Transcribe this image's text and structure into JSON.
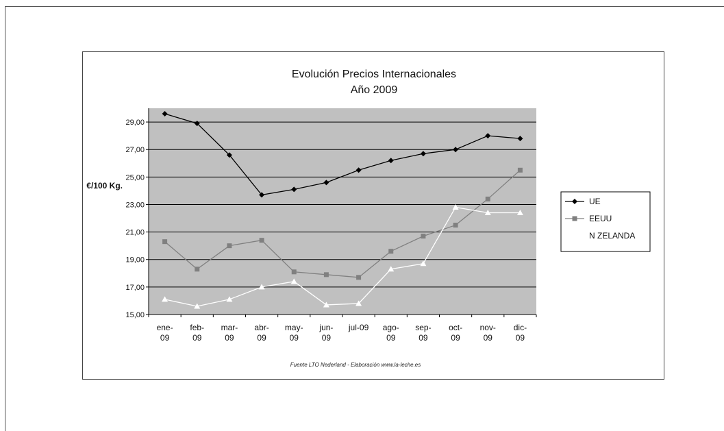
{
  "chart_data": {
    "type": "line",
    "title": "Evolución Precios Internacionales",
    "subtitle": "Año 2009",
    "ylabel": "€/100 Kg.",
    "xlabel": "",
    "source_note": "Fuente LTO Nederland - Elaboración www.la-leche.es",
    "categories": [
      [
        "ene-",
        "09"
      ],
      [
        "feb-",
        "09"
      ],
      [
        "mar-",
        "09"
      ],
      [
        "abr-",
        "09"
      ],
      [
        "may-",
        "09"
      ],
      [
        "jun-",
        "09"
      ],
      [
        "jul-09"
      ],
      [
        "ago-",
        "09"
      ],
      [
        "sep-",
        "09"
      ],
      [
        "oct-",
        "09"
      ],
      [
        "nov-",
        "09"
      ],
      [
        "dic-",
        "09"
      ]
    ],
    "yticks": [
      "15,00",
      "17,00",
      "19,00",
      "21,00",
      "23,00",
      "25,00",
      "27,00",
      "29,00"
    ],
    "ylim": [
      15,
      30
    ],
    "grid": "horizontal",
    "legend_position": "right",
    "plot_background": "#c0c0c0",
    "series": [
      {
        "name": "UE",
        "color": "#000000",
        "marker": "diamond",
        "values": [
          29.6,
          28.9,
          26.6,
          23.7,
          24.1,
          24.6,
          25.5,
          26.2,
          26.7,
          27.0,
          28.0,
          27.8
        ]
      },
      {
        "name": "EEUU",
        "color": "#808080",
        "marker": "square",
        "values": [
          20.3,
          18.3,
          20.0,
          20.4,
          18.1,
          17.9,
          17.7,
          19.6,
          20.7,
          21.5,
          23.4,
          25.5
        ]
      },
      {
        "name": "N ZELANDA",
        "color": "#ffffff",
        "marker": "triangle",
        "values": [
          16.1,
          15.6,
          16.1,
          17.0,
          17.4,
          15.7,
          15.8,
          18.3,
          18.7,
          22.8,
          22.4,
          22.4
        ]
      }
    ]
  }
}
